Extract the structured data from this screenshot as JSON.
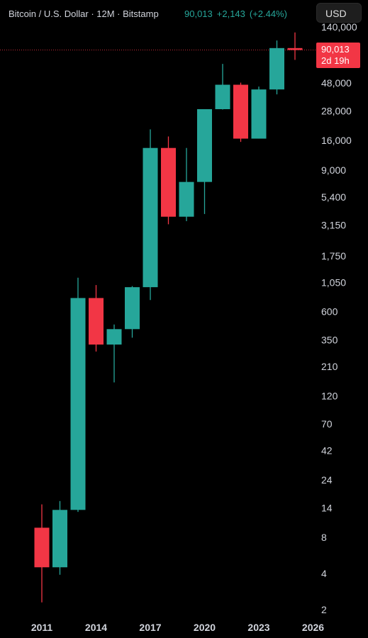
{
  "header": {
    "title": "Bitcoin / U.S. Dollar · 12M · Bitstamp",
    "last_price": "90,013",
    "change": "+2,143",
    "change_pct": "(+2.44%)",
    "currency_button": "USD"
  },
  "price_badge": {
    "price": "90,013",
    "countdown": "2d 19h"
  },
  "colors": {
    "up": "#26a69a",
    "down": "#f23645",
    "background": "#000000",
    "text": "#d1d4dc"
  },
  "chart_data": {
    "type": "candlestick",
    "scale": "log",
    "ylim": [
      1.6,
      150000
    ],
    "current_price": 90013,
    "y_ticks": [
      {
        "value": 140000,
        "label": "140,000"
      },
      {
        "value": 48000,
        "label": "48,000"
      },
      {
        "value": 28000,
        "label": "28,000"
      },
      {
        "value": 16000,
        "label": "16,000"
      },
      {
        "value": 9000,
        "label": "9,000"
      },
      {
        "value": 5400,
        "label": "5,400"
      },
      {
        "value": 3150,
        "label": "3,150"
      },
      {
        "value": 1750,
        "label": "1,750"
      },
      {
        "value": 1050,
        "label": "1,050"
      },
      {
        "value": 600,
        "label": "600"
      },
      {
        "value": 350,
        "label": "350"
      },
      {
        "value": 210,
        "label": "210"
      },
      {
        "value": 120,
        "label": "120"
      },
      {
        "value": 70,
        "label": "70"
      },
      {
        "value": 42,
        "label": "42"
      },
      {
        "value": 24,
        "label": "24"
      },
      {
        "value": 14,
        "label": "14"
      },
      {
        "value": 8,
        "label": "8"
      },
      {
        "value": 4,
        "label": "4"
      },
      {
        "value": 2,
        "label": "2"
      }
    ],
    "x_ticks": [
      {
        "year": 2011,
        "label": "2011"
      },
      {
        "year": 2014,
        "label": "2014"
      },
      {
        "year": 2017,
        "label": "2017"
      },
      {
        "year": 2020,
        "label": "2020"
      },
      {
        "year": 2023,
        "label": "2023"
      },
      {
        "year": 2026,
        "label": "2026"
      }
    ],
    "candles": [
      {
        "year": 2011,
        "open": 9.6,
        "high": 15,
        "low": 2.3,
        "close": 4.5
      },
      {
        "year": 2012,
        "open": 4.5,
        "high": 16,
        "low": 3.9,
        "close": 13.5
      },
      {
        "year": 2013,
        "open": 13.5,
        "high": 1150,
        "low": 13,
        "close": 780
      },
      {
        "year": 2014,
        "open": 780,
        "high": 1000,
        "low": 280,
        "close": 320
      },
      {
        "year": 2015,
        "open": 320,
        "high": 470,
        "low": 155,
        "close": 430
      },
      {
        "year": 2016,
        "open": 430,
        "high": 980,
        "low": 365,
        "close": 960
      },
      {
        "year": 2017,
        "open": 960,
        "high": 19700,
        "low": 750,
        "close": 13800
      },
      {
        "year": 2018,
        "open": 13800,
        "high": 17200,
        "low": 3200,
        "close": 3700
      },
      {
        "year": 2019,
        "open": 3700,
        "high": 13800,
        "low": 3400,
        "close": 7200
      },
      {
        "year": 2020,
        "open": 7200,
        "high": 29000,
        "low": 3900,
        "close": 29000
      },
      {
        "year": 2021,
        "open": 29000,
        "high": 69000,
        "low": 28800,
        "close": 46300
      },
      {
        "year": 2022,
        "open": 46300,
        "high": 48200,
        "low": 15500,
        "close": 16500
      },
      {
        "year": 2023,
        "open": 16500,
        "high": 44700,
        "low": 16500,
        "close": 42300
      },
      {
        "year": 2024,
        "open": 42300,
        "high": 108000,
        "low": 38500,
        "close": 93400
      },
      {
        "year": 2025,
        "open": 93400,
        "high": 126000,
        "low": 74500,
        "close": 90013
      }
    ]
  }
}
